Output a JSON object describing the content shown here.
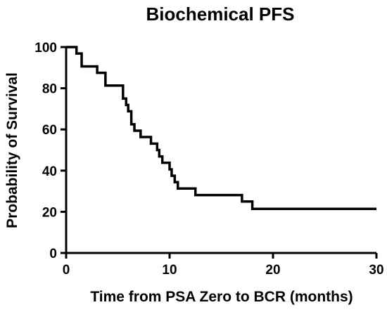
{
  "chart_data": {
    "type": "line",
    "step": "post",
    "title": "Biochemical PFS",
    "xlabel": "Time from PSA Zero to BCR (months)",
    "ylabel": "Probability of Survival",
    "xlim": [
      0,
      30
    ],
    "ylim": [
      0,
      100
    ],
    "xticks": [
      0,
      10,
      20,
      30
    ],
    "yticks": [
      0,
      20,
      40,
      60,
      80,
      100
    ],
    "grid": false,
    "legend": "none",
    "color": "#000000",
    "series": [
      {
        "x": [
          0,
          1.0,
          1.5,
          3.0,
          3.8,
          5.5,
          5.8,
          6.0,
          6.3,
          6.6,
          7.2,
          8.2,
          8.8,
          9.0,
          9.3,
          10.0,
          10.2,
          10.5,
          10.8,
          12.5,
          17.0,
          18.0,
          30.0
        ],
        "y": [
          100,
          96.9,
          90.6,
          87.5,
          81.3,
          75.0,
          71.9,
          68.8,
          62.5,
          59.4,
          56.3,
          53.1,
          50.0,
          46.9,
          43.8,
          40.6,
          37.5,
          34.4,
          31.3,
          28.1,
          25.0,
          21.4,
          21.4
        ]
      }
    ]
  }
}
